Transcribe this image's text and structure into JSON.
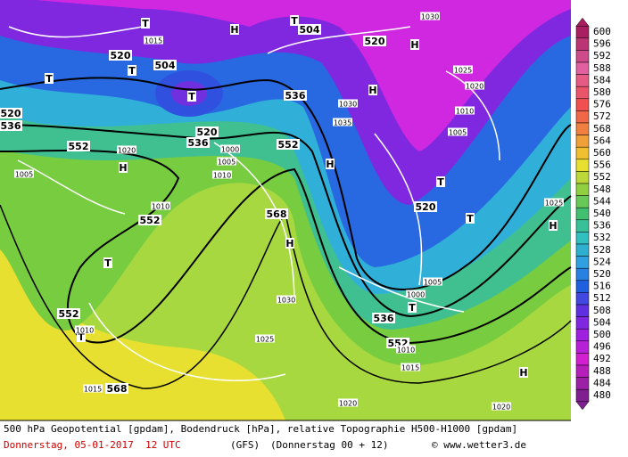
{
  "map": {
    "labels": [
      "520",
      "504",
      "520",
      "536",
      "552",
      "536",
      "520",
      "552",
      "536",
      "520",
      "504",
      "552",
      "568",
      "552",
      "536",
      "552",
      "520",
      "568",
      "T",
      "H",
      "T",
      "T",
      "T",
      "T",
      "H",
      "H",
      "H",
      "H",
      "T",
      "T",
      "H",
      "H",
      "T",
      "T",
      "T",
      "H",
      "1015",
      "1030",
      "1025",
      "1005",
      "1030",
      "1025",
      "1020",
      "1020",
      "1015",
      "1010",
      "1000",
      "1035",
      "1030",
      "1020",
      "1005",
      "1000",
      "1005",
      "1010",
      "1025",
      "1015",
      "1010",
      "1010",
      "1020",
      "1010",
      "1005"
    ]
  },
  "legend": {
    "levels": [
      600,
      596,
      592,
      588,
      584,
      580,
      576,
      572,
      568,
      564,
      560,
      556,
      552,
      548,
      544,
      540,
      536,
      532,
      528,
      524,
      520,
      516,
      512,
      508,
      504,
      500,
      496,
      492,
      488,
      484,
      480
    ]
  },
  "footer": {
    "description": "500 hPa Geopotential [gpdam], Bodendruck [hPa], relative Topographie H500-H1000 [gpdam]",
    "date": "Donnerstag, 05-01-2017  12 UTC",
    "model": "(GFS)",
    "run": "(Donnerstag 00 + 12)",
    "source": "© www.wetter3.de"
  }
}
